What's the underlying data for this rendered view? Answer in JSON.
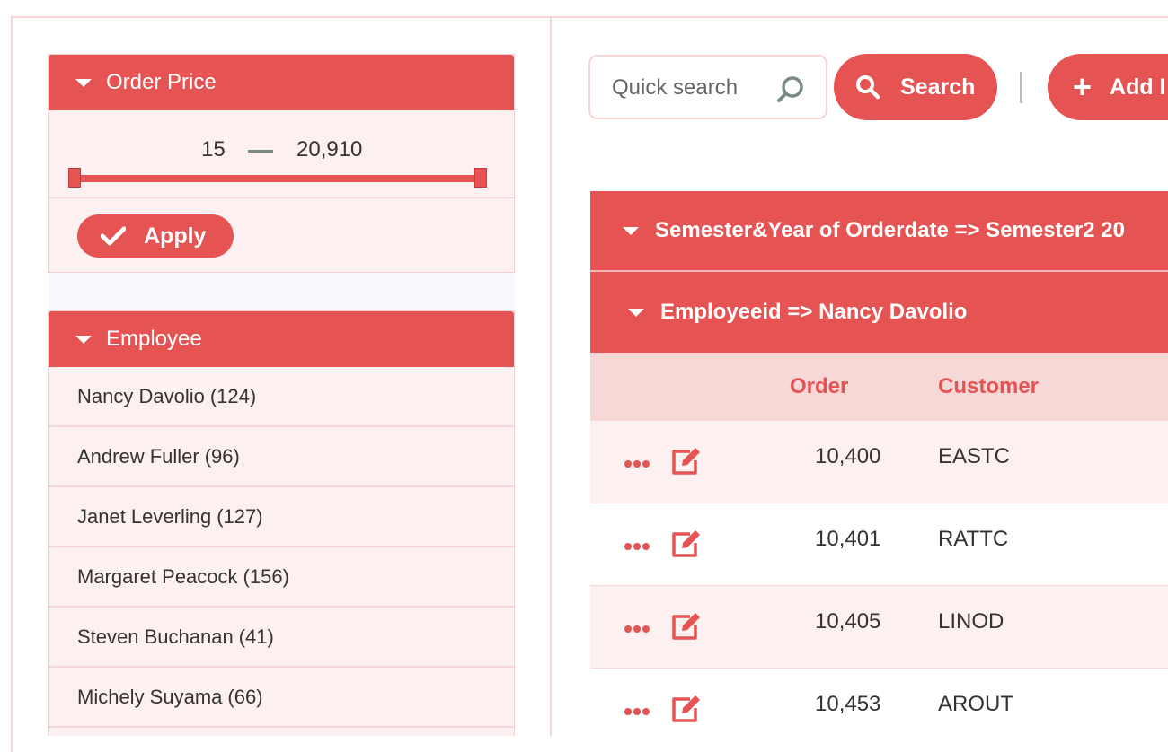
{
  "filters": {
    "order_price": {
      "title": "Order Price",
      "min": "15",
      "max": "20,910",
      "apply_label": "Apply"
    },
    "employee": {
      "title": "Employee",
      "items": [
        {
          "name": "Nancy Davolio",
          "count": "(124)"
        },
        {
          "name": "Andrew Fuller",
          "count": "(96)"
        },
        {
          "name": "Janet Leverling",
          "count": "(127)"
        },
        {
          "name": "Margaret Peacock",
          "count": "(156)"
        },
        {
          "name": "Steven Buchanan",
          "count": "(41)"
        },
        {
          "name": "Michely Suyama",
          "count": "(66)"
        }
      ]
    }
  },
  "toolbar": {
    "search_placeholder": "Quick search",
    "search_label": "Search",
    "add_label": "Add I"
  },
  "grid": {
    "group1": "Semester&Year of Orderdate => Semester2 20",
    "group2": "Employeeid => Nancy Davolio",
    "columns": {
      "order": "Order",
      "customer": "Customer"
    },
    "rows": [
      {
        "order": "10,400",
        "customer": "EASTC"
      },
      {
        "order": "10,401",
        "customer": "RATTC"
      },
      {
        "order": "10,405",
        "customer": "LINOD"
      },
      {
        "order": "10,453",
        "customer": "AROUT"
      }
    ]
  },
  "colors": {
    "accent": "#e55353",
    "panel_bg": "#fdf0f0",
    "header_bg": "#f8d7d7"
  },
  "icons": {
    "collapse": "triangle-down-icon",
    "apply": "check-icon",
    "search": "magnifier-icon",
    "add": "plus-icon",
    "row_menu": "ellipsis-icon",
    "row_edit": "edit-icon"
  }
}
